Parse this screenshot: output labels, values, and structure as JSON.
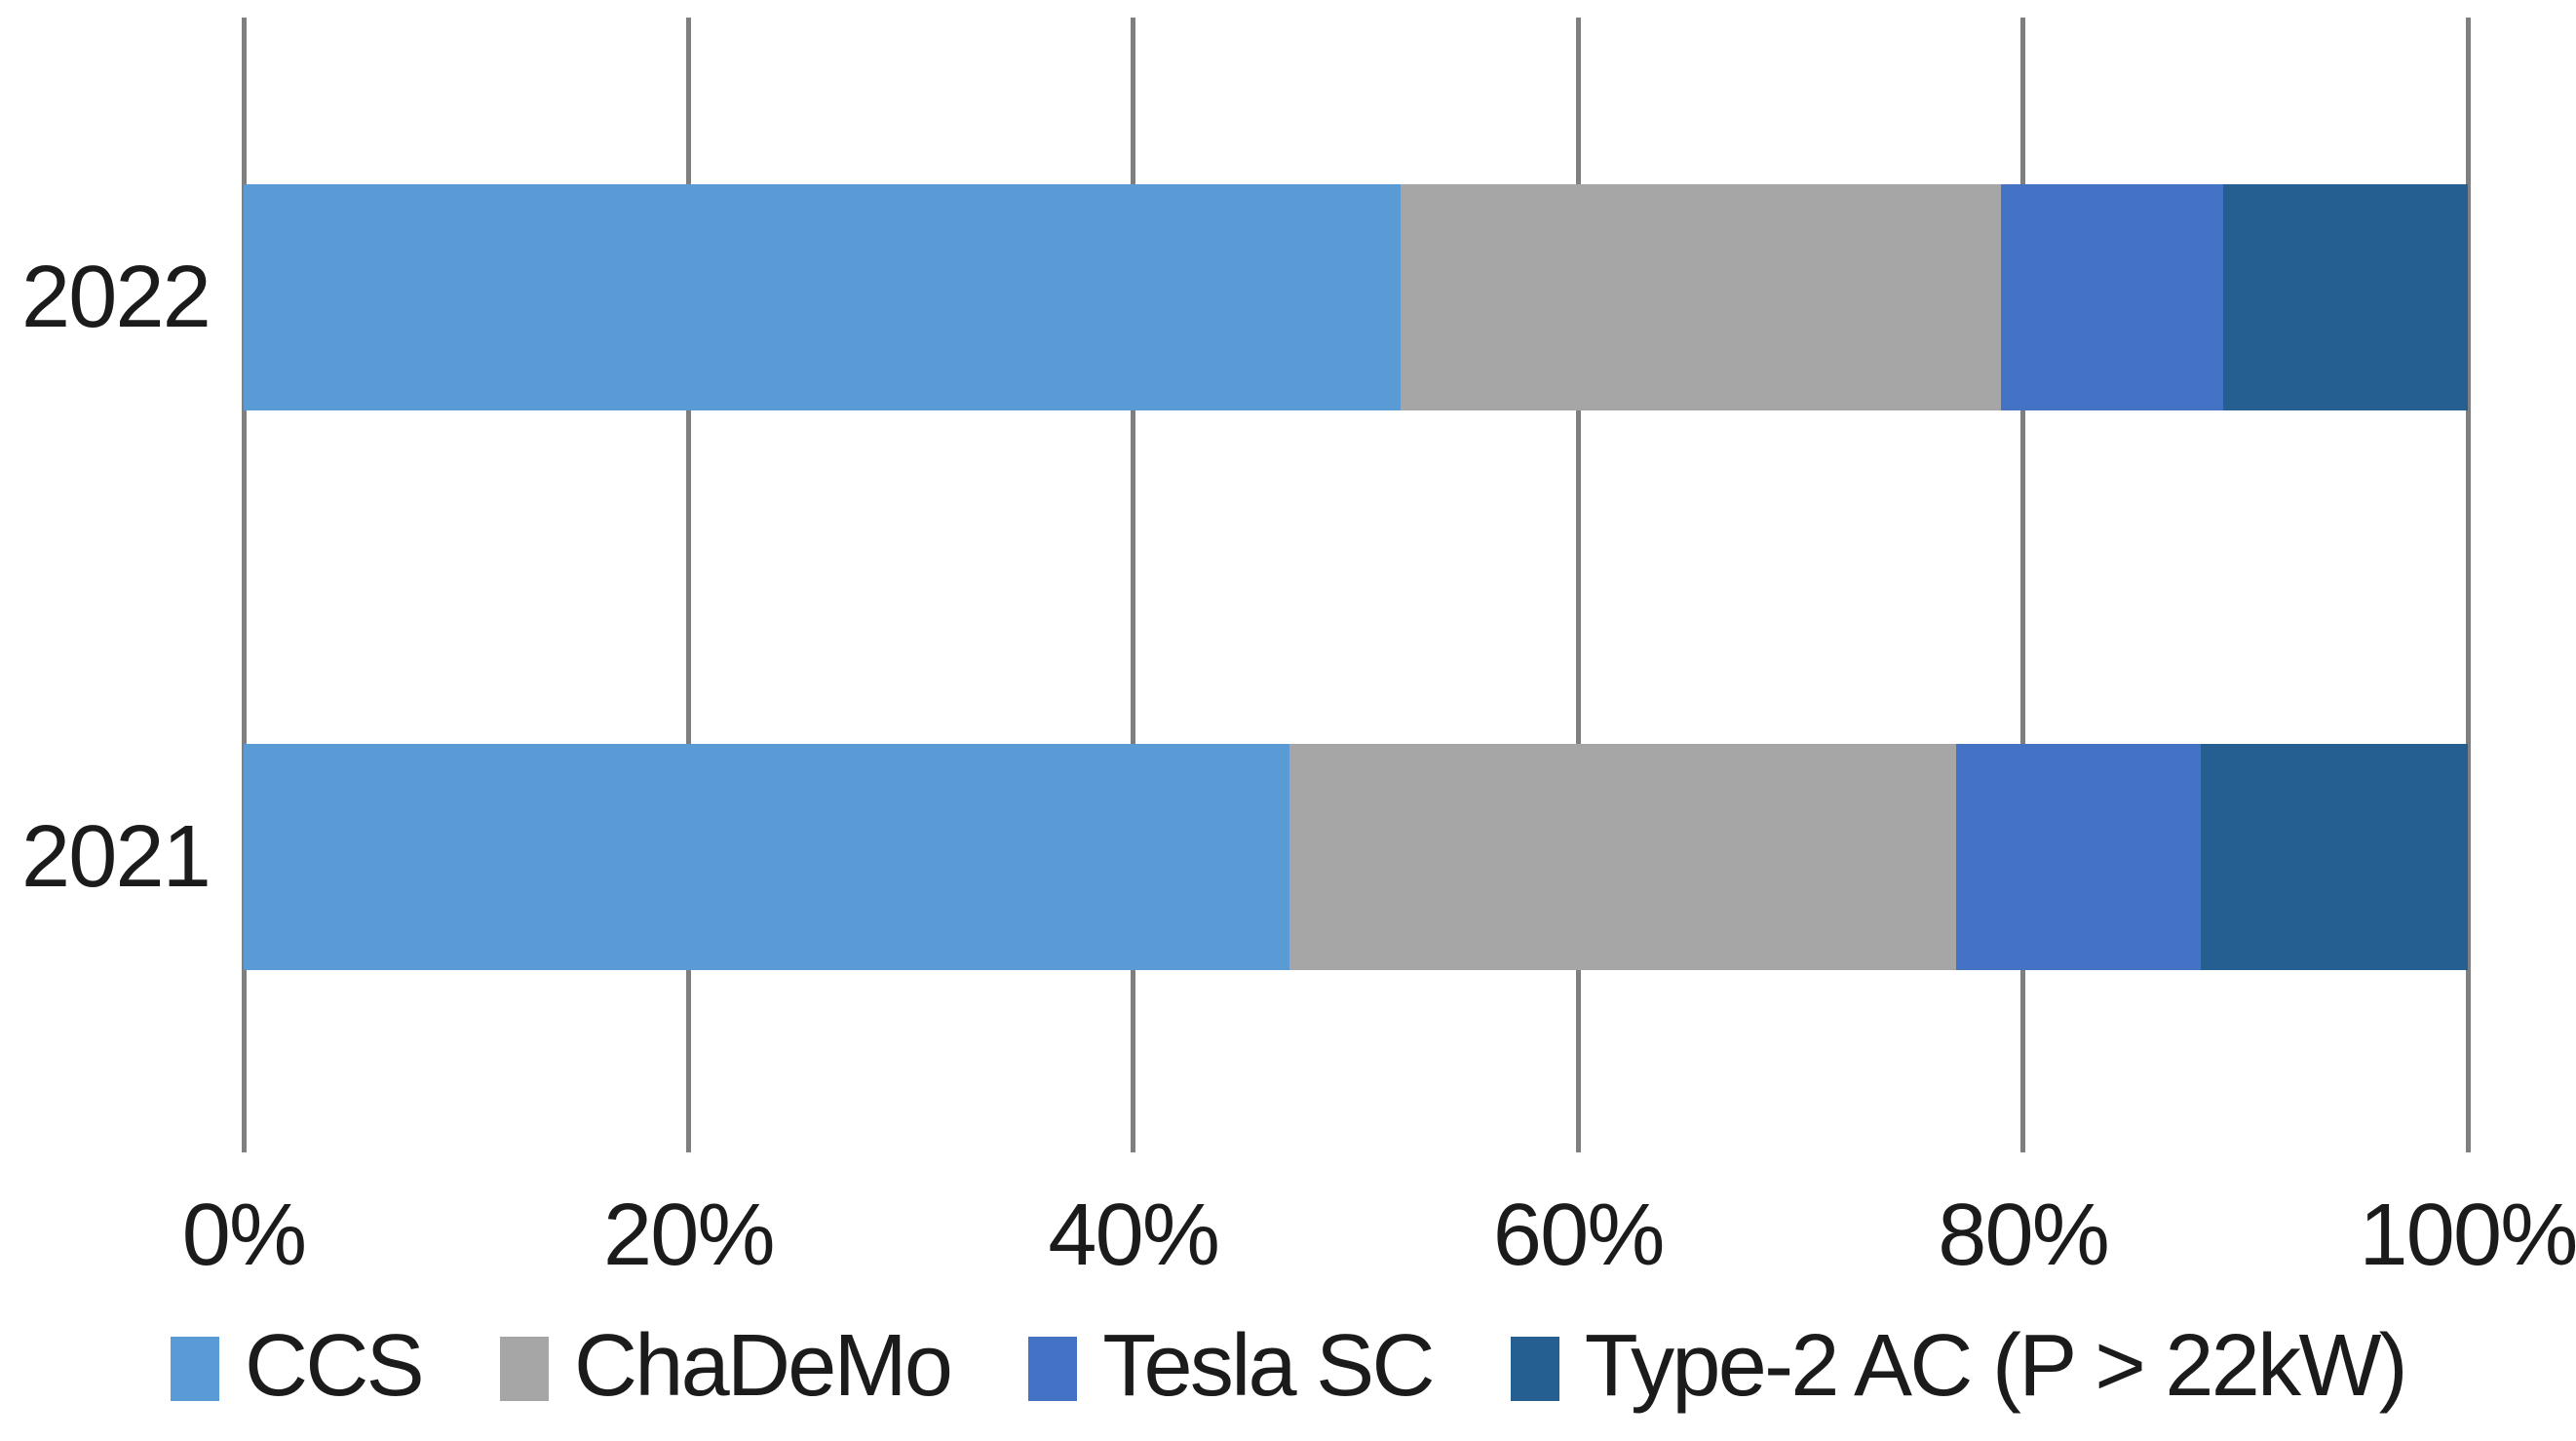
{
  "chart_data": {
    "type": "bar",
    "orientation": "horizontal",
    "stacked": true,
    "title": "",
    "xlabel": "",
    "ylabel": "",
    "categories": [
      "2022",
      "2021"
    ],
    "series": [
      {
        "name": "CCS",
        "color": "#5B9BD5",
        "values": [
          52,
          47
        ]
      },
      {
        "name": "ChaDeMo",
        "color": "#A6A6A6",
        "values": [
          27,
          30
        ]
      },
      {
        "name": "Tesla SC",
        "color": "#4472C4",
        "values": [
          10,
          11
        ]
      },
      {
        "name": "Type-2 AC (P > 22kW)",
        "color": "#255E91",
        "values": [
          11,
          12
        ]
      }
    ],
    "x_axis": {
      "min": 0,
      "max": 100,
      "tick_values": [
        0,
        20,
        40,
        60,
        80,
        100
      ],
      "tick_labels": [
        "0%",
        "20%",
        "40%",
        "60%",
        "80%",
        "100%"
      ]
    },
    "grid": "vertical-only",
    "legend_position": "bottom",
    "gridline_color": "#7f7f7f",
    "text_color": "#1b1b1b",
    "background_color": "#ffffff"
  }
}
